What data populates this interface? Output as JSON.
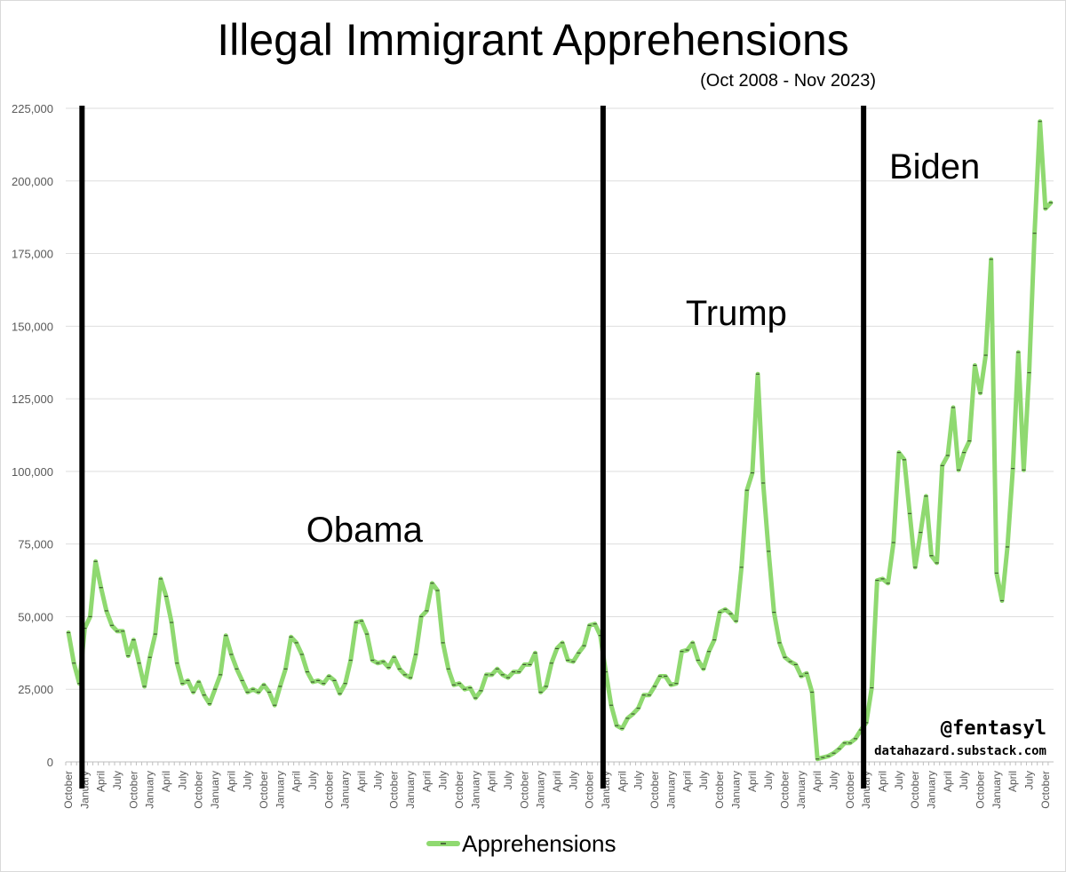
{
  "title": "Illegal Immigrant Apprehensions",
  "subtitle": "(Oct 2008 - Nov 2023)",
  "credit": {
    "handle": "@fentasyl",
    "site": "datahazard.substack.com"
  },
  "legend": {
    "label": "Apprehensions",
    "color": "#8fd970"
  },
  "chart_data": {
    "type": "line",
    "title": "Illegal Immigrant Apprehensions",
    "subtitle": "(Oct 2008 - Nov 2023)",
    "start": "2008-10",
    "end": "2023-11",
    "ylim": [
      0,
      225000
    ],
    "yticks": [
      "0",
      "25,000",
      "50,000",
      "75,000",
      "100,000",
      "125,000",
      "150,000",
      "175,000",
      "200,000",
      "225,000"
    ],
    "ytick_values": [
      0,
      25000,
      50000,
      75000,
      100000,
      125000,
      150000,
      175000,
      200000,
      225000
    ],
    "xtick_labels_cycle": [
      "October",
      "January",
      "April",
      "July"
    ],
    "grid": true,
    "legend_position": "bottom",
    "series": [
      {
        "name": "Apprehensions",
        "color": "#8fd970",
        "values": [
          44500,
          34000,
          27000,
          46000,
          50000,
          69000,
          60000,
          52000,
          47000,
          45000,
          45000,
          36500,
          42000,
          34000,
          26000,
          36000,
          44000,
          63000,
          57000,
          48000,
          34000,
          27000,
          28000,
          24000,
          27500,
          23000,
          20000,
          25000,
          30000,
          43500,
          37000,
          32000,
          28000,
          24000,
          25000,
          24000,
          26500,
          24000,
          19500,
          26000,
          32000,
          43000,
          41000,
          37000,
          31000,
          27500,
          28000,
          27000,
          29500,
          28000,
          23500,
          27000,
          35000,
          48000,
          48500,
          44000,
          35000,
          34000,
          34500,
          32500,
          36000,
          32000,
          30000,
          29000,
          37000,
          50000,
          52000,
          61500,
          59000,
          41000,
          32000,
          26500,
          27000,
          25000,
          25500,
          22000,
          24500,
          30000,
          30000,
          32000,
          30000,
          29000,
          31000,
          31000,
          33500,
          33500,
          37500,
          24000,
          26000,
          34000,
          39000,
          41000,
          35000,
          34500,
          37500,
          40000,
          47000,
          47500,
          43500,
          31000,
          19500,
          12500,
          11500,
          15000,
          16500,
          18500,
          23000,
          23000,
          26000,
          29500,
          29500,
          26500,
          27000,
          38000,
          38500,
          41000,
          35000,
          32000,
          38000,
          42000,
          51500,
          52500,
          51000,
          48500,
          67000,
          93500,
          99500,
          133500,
          96000,
          72500,
          51500,
          41000,
          36000,
          34500,
          33500,
          29500,
          30500,
          24000,
          1000,
          1500,
          2000,
          3000,
          4500,
          6500,
          6500,
          8000,
          11000,
          13500,
          25500,
          62500,
          63000,
          61500,
          75500,
          106500,
          104000,
          85500,
          67000,
          79000,
          91500,
          71000,
          68500,
          102000,
          105500,
          122000,
          100500,
          106500,
          110500,
          136500,
          127000,
          140000,
          173000,
          65000,
          55500,
          74000,
          101000,
          141000,
          100500,
          134000,
          182000,
          220500,
          190500,
          192500
        ]
      }
    ],
    "annotations": [
      {
        "label": "Obama",
        "at": "2009-01"
      },
      {
        "label": "Trump",
        "at": "2017-01"
      },
      {
        "label": "Biden",
        "at": "2021-01"
      }
    ]
  }
}
